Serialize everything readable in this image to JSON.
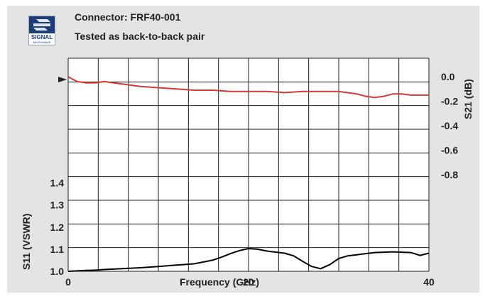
{
  "logo": {
    "line1": "SIGNAL",
    "line2": "MICROWAVE"
  },
  "header": {
    "title": "Connector: FRF40-001",
    "subtitle": "Tested as back-to-back pair"
  },
  "colors": {
    "background": "#e4e4e6",
    "plot": "#ffffff",
    "s21": "#d23c34",
    "s11": "#000000",
    "logo": "#1d3c78"
  },
  "chart_data": {
    "type": "line",
    "xlabel": "Frequency (GHz)",
    "xlim": [
      0,
      40
    ],
    "x_ticks": [
      {
        "value": 0,
        "label": "0"
      },
      {
        "value": 20,
        "label": "20"
      },
      {
        "value": 40,
        "label": "40"
      }
    ],
    "ylabel_left": "S11 (VSWR)",
    "ylim_left": [
      1.0,
      1.45
    ],
    "left_ticks": [
      {
        "value": 1.0,
        "label": "1.0"
      },
      {
        "value": 1.1,
        "label": "1.1"
      },
      {
        "value": 1.2,
        "label": "1.2"
      },
      {
        "value": 1.3,
        "label": "1.3"
      },
      {
        "value": 1.4,
        "label": "1.4"
      }
    ],
    "ylabel_right": "S21 (dB)",
    "ylim_right": [
      -0.8,
      0.0
    ],
    "right_ticks": [
      {
        "value": 0.0,
        "label": "0.0"
      },
      {
        "value": -0.2,
        "label": "-0.2"
      },
      {
        "value": -0.4,
        "label": "-0.4"
      },
      {
        "value": -0.6,
        "label": "-0.6"
      },
      {
        "value": -0.8,
        "label": "-0.8"
      }
    ],
    "grid": true,
    "series": [
      {
        "axis": "right",
        "x": [
          0,
          0.5,
          1,
          2,
          3,
          4,
          5,
          6,
          8,
          10,
          12,
          14,
          16,
          18,
          20,
          22,
          24,
          26,
          28,
          30,
          32,
          33,
          34,
          35,
          36,
          37,
          38,
          39,
          40
        ],
        "values": [
          0.0,
          -0.02,
          -0.04,
          -0.05,
          -0.05,
          -0.04,
          -0.05,
          -0.06,
          -0.08,
          -0.09,
          -0.1,
          -0.11,
          -0.11,
          -0.12,
          -0.12,
          -0.12,
          -0.13,
          -0.12,
          -0.12,
          -0.12,
          -0.14,
          -0.16,
          -0.17,
          -0.16,
          -0.14,
          -0.14,
          -0.15,
          -0.15,
          -0.15
        ]
      },
      {
        "axis": "left",
        "x": [
          0,
          1,
          2,
          3,
          4,
          6,
          8,
          10,
          12,
          14,
          16,
          17,
          18,
          19,
          20,
          21,
          22,
          24,
          25,
          26,
          27,
          28,
          29,
          30,
          31,
          32,
          33,
          34,
          36,
          38,
          39,
          40
        ],
        "values": [
          1.0,
          1.002,
          1.004,
          1.005,
          1.008,
          1.012,
          1.016,
          1.022,
          1.028,
          1.034,
          1.05,
          1.064,
          1.08,
          1.094,
          1.103,
          1.1,
          1.092,
          1.082,
          1.07,
          1.045,
          1.022,
          1.012,
          1.03,
          1.058,
          1.07,
          1.075,
          1.08,
          1.085,
          1.088,
          1.085,
          1.072,
          1.082
        ]
      }
    ]
  }
}
